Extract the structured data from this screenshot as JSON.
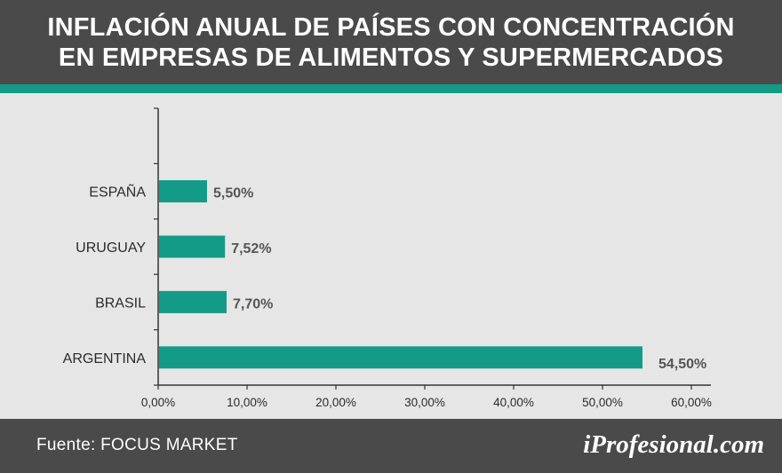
{
  "header": {
    "title_line1": "INFLACIÓN ANUAL DE PAÍSES CON CONCENTRACIÓN",
    "title_line2": "EN EMPRESAS DE ALIMENTOS Y SUPERMERCADOS"
  },
  "colors": {
    "header_bg": "#4a4a4a",
    "accent": "#149b87",
    "bar": "#149b87",
    "background": "#e6e6e6",
    "value_label": "#555555",
    "axis_text": "#2b2b2b"
  },
  "chart_data": {
    "type": "bar",
    "orientation": "horizontal",
    "title": "INFLACIÓN ANUAL DE PAÍSES CON CONCENTRACIÓN EN EMPRESAS DE ALIMENTOS Y SUPERMERCADOS",
    "categories": [
      "ESPAÑA",
      "URUGUAY",
      "BRASIL",
      "ARGENTINA"
    ],
    "values": [
      5.5,
      7.52,
      7.7,
      54.5
    ],
    "value_labels": [
      "5,50%",
      "7,52%",
      "7,70%",
      "54,50%"
    ],
    "xlim": [
      0,
      60
    ],
    "x_ticks": [
      0,
      10,
      20,
      30,
      40,
      50,
      60
    ],
    "x_tick_labels": [
      "0,00%",
      "10,00%",
      "20,00%",
      "30,00%",
      "40,00%",
      "50,00%",
      "60,00%"
    ],
    "xlabel": "",
    "ylabel": "",
    "grid": false,
    "legend": "none"
  },
  "footer": {
    "source": "Fuente: FOCUS MARKET",
    "brand": "iProfesional.com"
  }
}
